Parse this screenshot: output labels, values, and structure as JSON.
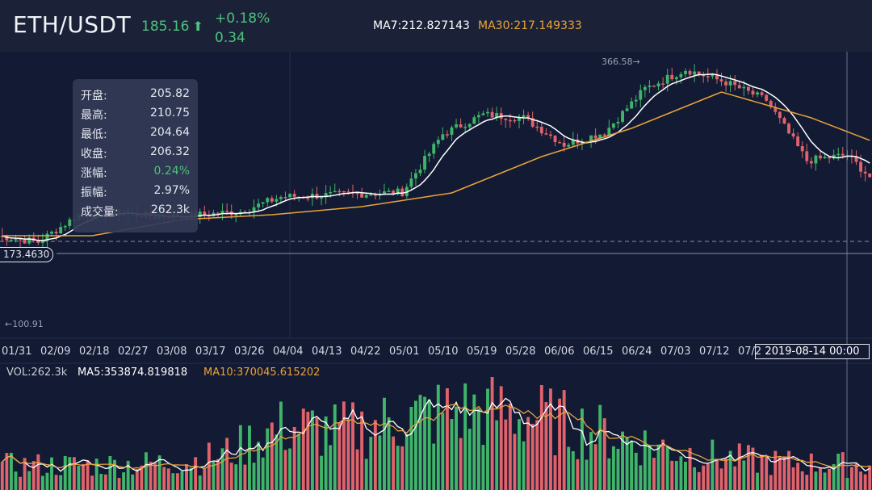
{
  "header": {
    "pair": "ETH/USDT",
    "price": "185.16",
    "price_arrow": "⬆",
    "change_percent": "+0.18%",
    "change_value": "0.34",
    "ma7_label": "MA7:212.827143",
    "ma30_label": "MA30:217.149333"
  },
  "info_panel": {
    "rows": [
      {
        "label": "开盘",
        "value": "205.82"
      },
      {
        "label": "最高",
        "value": "210.75"
      },
      {
        "label": "最低",
        "value": "204.64"
      },
      {
        "label": "收盘",
        "value": "206.32"
      },
      {
        "label": "涨幅",
        "value": "0.24%"
      },
      {
        "label": "振幅",
        "value": "2.97%"
      },
      {
        "label": "成交量",
        "value": "262.3k"
      }
    ],
    "colon": ":"
  },
  "markers": {
    "price_tag": "173.4630",
    "time_tag": "2019-08-14 00:00",
    "high_label": "366.58",
    "low_label": "100.91",
    "high_arrow": "→",
    "low_arrow": "←"
  },
  "x_axis_dates": [
    "01/31",
    "02/09",
    "02/18",
    "02/27",
    "03/08",
    "03/17",
    "03/26",
    "04/04",
    "04/13",
    "04/22",
    "05/01",
    "05/10",
    "05/19",
    "05/28",
    "06/06",
    "06/15",
    "06/24",
    "07/03",
    "07/12",
    "07/2"
  ],
  "volume_legend": {
    "vol": "VOL:262.3k",
    "ma5": "MA5:353874.819818",
    "ma10": "MA10:370045.615202"
  },
  "colors": {
    "up": "#3fb56a",
    "down": "#e0636b",
    "ma_white": "#ffffff",
    "ma_orange": "#e8a33a",
    "background": "#131a33"
  },
  "chart_data": {
    "type": "candlestick",
    "series": [
      {
        "name": "MA7",
        "value": 212.827143
      },
      {
        "name": "MA30",
        "value": 217.149333
      }
    ],
    "close_path_anchors": [
      [
        0,
        112
      ],
      [
        9,
        104
      ],
      [
        18,
        138
      ],
      [
        27,
        140
      ],
      [
        36,
        136
      ],
      [
        45,
        138
      ],
      [
        54,
        142
      ],
      [
        63,
        160
      ],
      [
        72,
        162
      ],
      [
        81,
        164
      ],
      [
        90,
        166
      ],
      [
        99,
        238
      ],
      [
        108,
        262
      ],
      [
        117,
        258
      ],
      [
        126,
        225
      ],
      [
        135,
        240
      ],
      [
        144,
        294
      ],
      [
        153,
        318
      ],
      [
        162,
        302
      ],
      [
        171,
        280
      ],
      [
        180,
        205
      ],
      [
        189,
        212
      ],
      [
        194,
        185
      ]
    ],
    "ma30_path_anchors": [
      [
        0,
        112
      ],
      [
        20,
        112
      ],
      [
        40,
        132
      ],
      [
        60,
        138
      ],
      [
        80,
        148
      ],
      [
        100,
        165
      ],
      [
        120,
        210
      ],
      [
        140,
        245
      ],
      [
        160,
        290
      ],
      [
        180,
        258
      ],
      [
        194,
        228
      ]
    ],
    "volume_y_range": [
      0,
      1
    ]
  }
}
